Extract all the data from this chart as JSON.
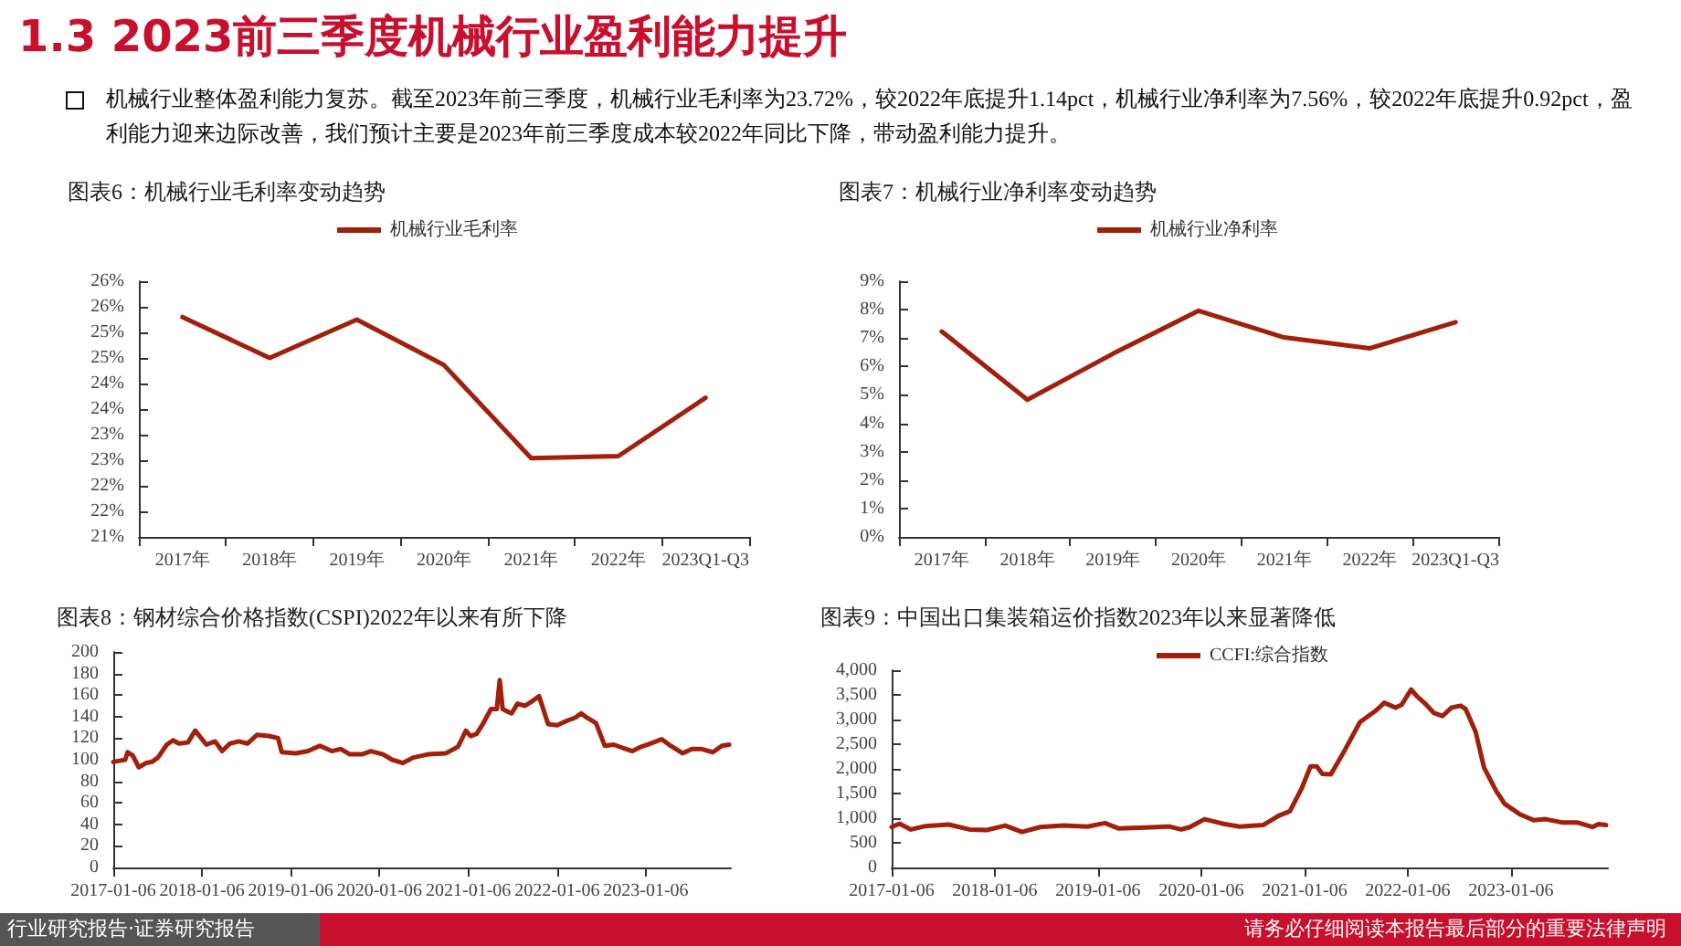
{
  "chart_data": [
    {
      "type": "line",
      "title": "图表6：机械行业毛利率变动趋势",
      "annotations": [
        "1.3 2023前三季度机械行业盈利能力提升",
        "机械行业整体盈利能力复苏。截至2023年前三季度，机械行业毛利率为23.72%，较2022年底提升1.14pct，机械行业净利率为7.56%，较2022年底提升0.92pct，盈利能力迎来边际改善，我们预计主要是2023年前三季度成本较2022年同比下降，带动盈利能力提升。",
        "行业研究报告·证券研究报告",
        "请务必仔细阅读本报告最后部分的重要法律声明"
      ],
      "categories": [
        "2017年",
        "2018年",
        "2019年",
        "2020年",
        "2021年",
        "2022年",
        "2023Q1-Q3"
      ],
      "series": [
        {
          "name": "机械行业毛利率",
          "color": "#a0200c",
          "values": [
            25.3,
            24.5,
            25.25,
            24.36,
            22.54,
            22.58,
            23.72
          ]
        }
      ],
      "ylim": [
        21,
        26
      ],
      "yticks": [
        {
          "value": 21,
          "label": "21%"
        },
        {
          "value": 21.5,
          "label": "22%"
        },
        {
          "value": 22,
          "label": "22%"
        },
        {
          "value": 22.5,
          "label": "23%"
        },
        {
          "value": 23,
          "label": "23%"
        },
        {
          "value": 23.5,
          "label": "24%"
        },
        {
          "value": 24,
          "label": "24%"
        },
        {
          "value": 24.5,
          "label": "25%"
        },
        {
          "value": 25,
          "label": "25%"
        },
        {
          "value": 25.5,
          "label": "26%"
        },
        {
          "value": 26,
          "label": "26%"
        }
      ],
      "legend": "top",
      "grid": false,
      "marker": "none",
      "line_style": "solid"
    },
    {
      "type": "line",
      "title": "图表7：机械行业净利率变动趋势",
      "categories": [
        "2017年",
        "2018年",
        "2019年",
        "2020年",
        "2021年",
        "2022年",
        "2023Q1-Q3"
      ],
      "series": [
        {
          "name": "机械行业净利率",
          "color": "#a0200c",
          "values": [
            7.23,
            4.83,
            6.45,
            7.96,
            7.02,
            6.64,
            7.56
          ]
        }
      ],
      "ylim": [
        0,
        9
      ],
      "yticks": [
        {
          "value": 0,
          "label": "0%"
        },
        {
          "value": 1,
          "label": "1%"
        },
        {
          "value": 2,
          "label": "2%"
        },
        {
          "value": 3,
          "label": "3%"
        },
        {
          "value": 4,
          "label": "4%"
        },
        {
          "value": 5,
          "label": "5%"
        },
        {
          "value": 6,
          "label": "6%"
        },
        {
          "value": 7,
          "label": "7%"
        },
        {
          "value": 8,
          "label": "8%"
        },
        {
          "value": 9,
          "label": "9%"
        }
      ],
      "legend": "top",
      "grid": false,
      "marker": "none",
      "line_style": "solid"
    },
    {
      "type": "line",
      "title": "图表8：钢材综合价格指数(CSPI)2022年以来有所下降",
      "x": [
        "2017-01-06",
        "2017-02-24",
        "2017-03-06",
        "2017-03-27",
        "2017-04-21",
        "2017-05-21",
        "2017-06-14",
        "2017-07-09",
        "2017-08-14",
        "2017-09-09",
        "2017-10-03",
        "2017-11-09",
        "2017-12-09",
        "2018-01-24",
        "2018-03-01",
        "2018-03-30",
        "2018-05-01",
        "2018-06-06",
        "2018-07-12",
        "2018-08-20",
        "2018-10-09",
        "2018-11-15",
        "2018-11-30",
        "2019-01-27",
        "2019-03-18",
        "2019-05-06",
        "2019-06-24",
        "2019-07-30",
        "2019-09-06",
        "2019-10-26",
        "2019-12-02",
        "2020-01-21",
        "2020-02-27",
        "2020-04-12",
        "2020-05-24",
        "2020-07-24",
        "2020-10-06",
        "2020-11-24",
        "2020-12-27",
        "2021-01-15",
        "2021-02-09",
        "2021-03-06",
        "2021-04-09",
        "2021-05-03",
        "2021-05-15",
        "2021-05-27",
        "2021-06-14",
        "2021-07-03",
        "2021-07-27",
        "2021-08-27",
        "2021-09-30",
        "2021-10-24",
        "2021-11-30",
        "2022-01-06",
        "2022-02-14",
        "2022-03-21",
        "2022-04-15",
        "2022-05-09",
        "2022-06-15",
        "2022-07-21",
        "2022-08-27",
        "2022-10-03",
        "2022-11-12",
        "2022-12-18",
        "2023-01-24",
        "2023-03-12",
        "2023-04-18",
        "2023-06-06",
        "2023-07-15",
        "2023-08-21",
        "2023-10-09",
        "2023-11-15",
        "2023-12-15"
      ],
      "series": [
        {
          "color": "#a0200c",
          "values": [
            98,
            100,
            107,
            104,
            93,
            97,
            98,
            102,
            114,
            118,
            115,
            116,
            127,
            114,
            117,
            108,
            115,
            117,
            115,
            123,
            122,
            120,
            107,
            106,
            108,
            113,
            108,
            110,
            105,
            105,
            108,
            105,
            100,
            97,
            102,
            105,
            106,
            112,
            127,
            122,
            124,
            133,
            147,
            147,
            174,
            147,
            145,
            143,
            152,
            150,
            155,
            159,
            133,
            132,
            136,
            139,
            143,
            139,
            134,
            113,
            114,
            111,
            108,
            112,
            115,
            119,
            113,
            106,
            110,
            110,
            107,
            113,
            114
          ]
        }
      ],
      "xlim": [
        "2017-01-06",
        "2023-12-22"
      ],
      "xticks": [
        "2017-01-06",
        "2018-01-06",
        "2019-01-06",
        "2020-01-06",
        "2021-01-06",
        "2022-01-06",
        "2023-01-06"
      ],
      "ylim": [
        0,
        200
      ],
      "yticks": [
        0,
        20,
        40,
        60,
        80,
        100,
        120,
        140,
        160,
        180,
        200
      ],
      "legend": false,
      "grid": false,
      "marker": "none",
      "line_style": "solid"
    },
    {
      "type": "line",
      "title": "图表9：中国出口集装箱运价指数2023年以来显著降低",
      "x": [
        "2017-01-06",
        "2017-02-03",
        "2017-03-15",
        "2017-05-06",
        "2017-07-27",
        "2017-10-09",
        "2017-12-09",
        "2018-02-12",
        "2018-04-12",
        "2018-06-15",
        "2018-09-06",
        "2018-11-30",
        "2019-01-30",
        "2019-03-21",
        "2019-06-24",
        "2019-09-15",
        "2019-10-27",
        "2019-11-27",
        "2020-01-18",
        "2020-03-21",
        "2020-05-21",
        "2020-08-12",
        "2020-10-06",
        "2020-11-15",
        "2020-12-27",
        "2021-01-27",
        "2021-02-18",
        "2021-03-09",
        "2021-04-09",
        "2021-05-30",
        "2021-07-21",
        "2021-09-15",
        "2021-10-15",
        "2021-11-24",
        "2021-12-15",
        "2022-01-18",
        "2022-02-06",
        "2022-03-09",
        "2022-04-09",
        "2022-05-09",
        "2022-06-09",
        "2022-07-12",
        "2022-07-30",
        "2022-09-03",
        "2022-10-03",
        "2022-11-15",
        "2022-12-15",
        "2023-02-06",
        "2023-03-27",
        "2023-05-09",
        "2023-07-09",
        "2023-08-30",
        "2023-10-21",
        "2023-11-12",
        "2023-12-08"
      ],
      "series": [
        {
          "name": "CCFI:综合指数",
          "color": "#a0200c",
          "values": [
            820,
            890,
            770,
            840,
            870,
            770,
            760,
            850,
            720,
            820,
            850,
            830,
            900,
            790,
            810,
            830,
            770,
            820,
            980,
            890,
            830,
            860,
            1050,
            1140,
            1610,
            2050,
            2050,
            1900,
            1890,
            2400,
            2950,
            3180,
            3340,
            3240,
            3300,
            3610,
            3480,
            3320,
            3130,
            3070,
            3240,
            3280,
            3210,
            2750,
            2020,
            1550,
            1290,
            1080,
            960,
            980,
            910,
            910,
            820,
            880,
            860
          ]
        }
      ],
      "xlim": [
        "2017-01-06",
        "2023-12-15"
      ],
      "xticks": [
        "2017-01-06",
        "2018-01-06",
        "2019-01-06",
        "2020-01-06",
        "2021-01-06",
        "2022-01-06",
        "2023-01-06"
      ],
      "ylim": [
        0,
        4000
      ],
      "yticks": [
        0,
        500,
        {
          "value": 1000,
          "label": "1,000"
        },
        {
          "value": 1500,
          "label": "1,500"
        },
        {
          "value": 2000,
          "label": "2,000"
        },
        {
          "value": 2500,
          "label": "2,500"
        },
        {
          "value": 3000,
          "label": "3,000"
        },
        {
          "value": 3500,
          "label": "3,500"
        },
        {
          "value": 4000,
          "label": "4,000"
        }
      ],
      "legend": "top",
      "grid": false,
      "marker": "none",
      "line_style": "solid"
    }
  ]
}
